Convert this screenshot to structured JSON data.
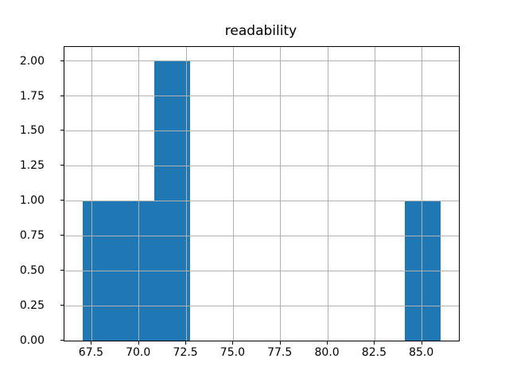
{
  "title": "readability",
  "chart_data": {
    "type": "bar",
    "subtype": "histogram",
    "title": "readability",
    "xlabel": "",
    "ylabel": "",
    "bin_edges": [
      67.0,
      68.9,
      70.8,
      72.7,
      74.6,
      76.5,
      78.4,
      80.3,
      82.2,
      84.1,
      86.0
    ],
    "counts": [
      1,
      1,
      2,
      0,
      0,
      0,
      0,
      0,
      0,
      1
    ],
    "xlim": [
      66.05,
      86.95
    ],
    "ylim": [
      0,
      2.1
    ],
    "xticks": [
      67.5,
      70.0,
      72.5,
      75.0,
      77.5,
      80.0,
      82.5,
      85.0
    ],
    "xtick_labels": [
      "67.5",
      "70.0",
      "72.5",
      "75.0",
      "77.5",
      "80.0",
      "82.5",
      "85.0"
    ],
    "yticks": [
      0.0,
      0.25,
      0.5,
      0.75,
      1.0,
      1.25,
      1.5,
      1.75,
      2.0
    ],
    "ytick_labels": [
      "0.00",
      "0.25",
      "0.50",
      "0.75",
      "1.00",
      "1.25",
      "1.50",
      "1.75",
      "2.00"
    ],
    "grid": true,
    "legend": null,
    "bar_color": "#1f77b4",
    "grid_color": "#b0b0b0",
    "spine_color": "#000000",
    "background_color": "#ffffff"
  }
}
